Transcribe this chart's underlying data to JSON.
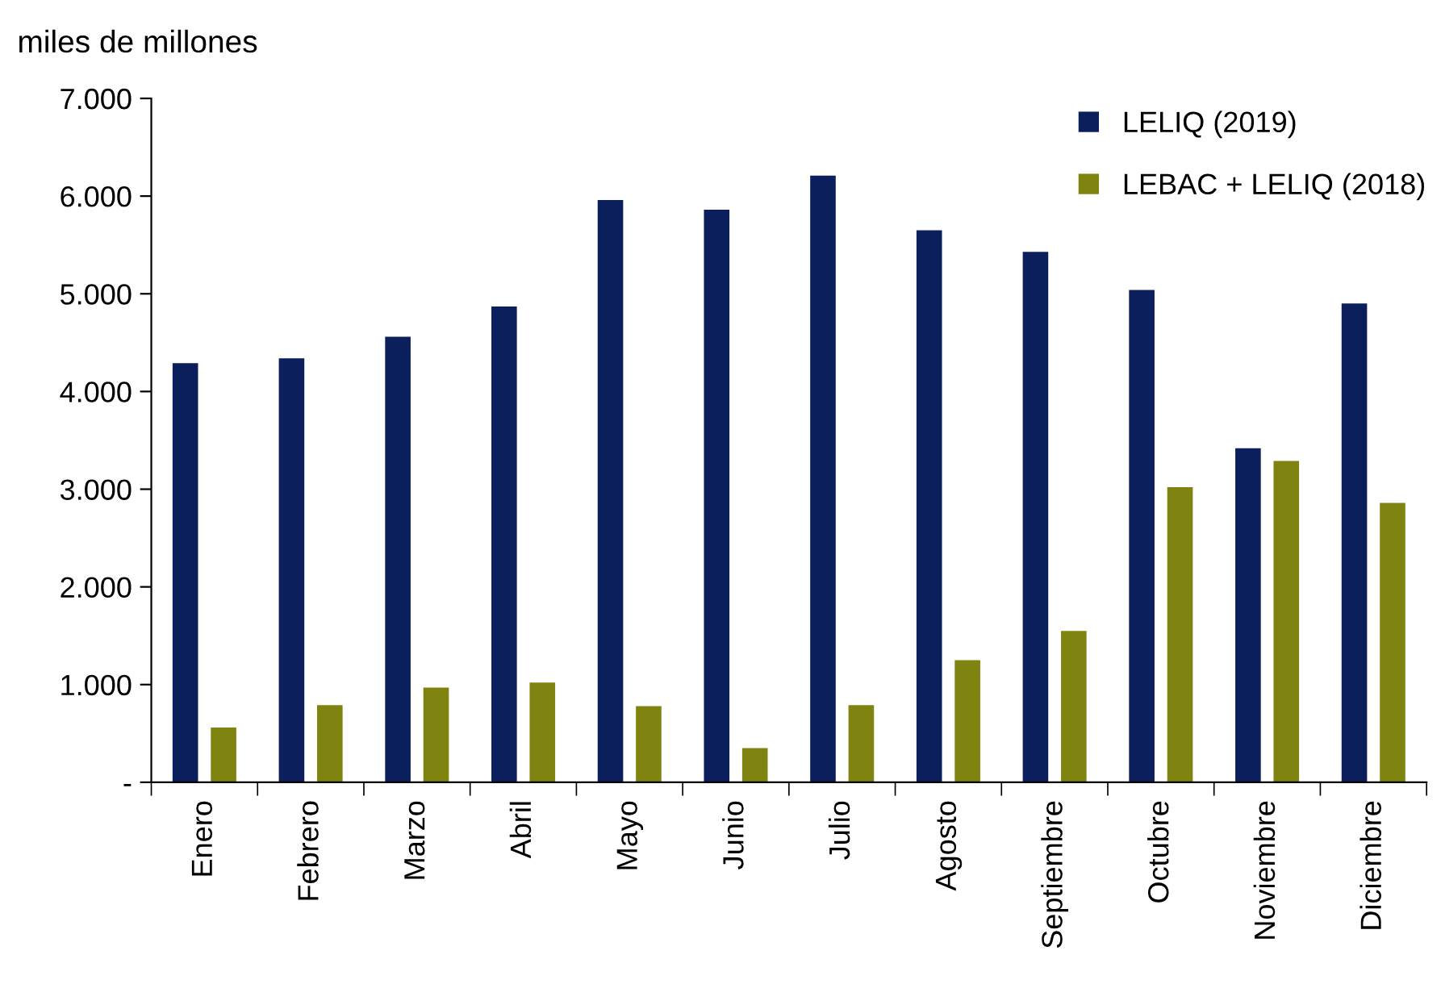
{
  "chart_data": {
    "type": "bar",
    "ylabel": "miles de millones",
    "categories": [
      "Enero",
      "Febrero",
      "Marzo",
      "Abril",
      "Mayo",
      "Junio",
      "Julio",
      "Agosto",
      "Septiembre",
      "Octubre",
      "Noviembre",
      "Diciembre"
    ],
    "series": [
      {
        "name": "LELIQ (2019)",
        "color": "#0b1f5c",
        "values": [
          4290,
          4340,
          4560,
          4870,
          5960,
          5860,
          6210,
          5650,
          5430,
          5040,
          3420,
          4900
        ]
      },
      {
        "name": "LEBAC + LELIQ (2018)",
        "color": "#7f8410",
        "values": [
          560,
          790,
          970,
          1020,
          780,
          350,
          790,
          1250,
          1550,
          3020,
          3290,
          2860
        ]
      }
    ],
    "ylim": [
      0,
      7000
    ],
    "yticks": [
      {
        "value": 0,
        "label": "-"
      },
      {
        "value": 1000,
        "label": "1.000"
      },
      {
        "value": 2000,
        "label": "2.000"
      },
      {
        "value": 3000,
        "label": "3.000"
      },
      {
        "value": 4000,
        "label": "4.000"
      },
      {
        "value": 5000,
        "label": "5.000"
      },
      {
        "value": 6000,
        "label": "6.000"
      },
      {
        "value": 7000,
        "label": "7.000"
      }
    ],
    "grid": false,
    "legend": "top right"
  }
}
